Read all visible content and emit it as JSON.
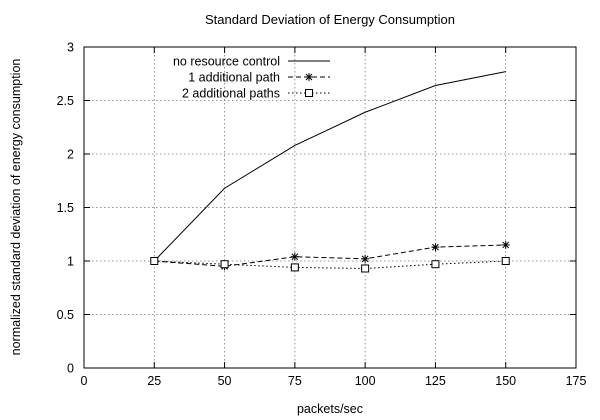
{
  "chart_data": {
    "type": "line",
    "title": "Standard Deviation of Energy Consumption",
    "xlabel": "packets/sec",
    "ylabel": "normalized standard deviation of energy consumption",
    "xlim": [
      0,
      175
    ],
    "ylim": [
      0,
      3
    ],
    "xticks": [
      "0",
      "25",
      "50",
      "75",
      "100",
      "125",
      "150",
      "175"
    ],
    "yticks": [
      "0",
      "0.5",
      "1",
      "1.5",
      "2",
      "2.5",
      "3"
    ],
    "grid": true,
    "legend_position": "top-left",
    "series": [
      {
        "name": "no resource control",
        "marker": "none",
        "line": "solid",
        "x": [
          25,
          50,
          75,
          100,
          125,
          150
        ],
        "y": [
          1.0,
          1.68,
          2.08,
          2.39,
          2.64,
          2.77
        ]
      },
      {
        "name": "1 additional path",
        "marker": "star",
        "line": "dashed",
        "x": [
          25,
          50,
          75,
          100,
          125,
          150
        ],
        "y": [
          1.0,
          0.95,
          1.04,
          1.02,
          1.13,
          1.15
        ]
      },
      {
        "name": "2 additional paths",
        "marker": "square",
        "line": "dotted",
        "x": [
          25,
          50,
          75,
          100,
          125,
          150
        ],
        "y": [
          1.0,
          0.97,
          0.94,
          0.93,
          0.97,
          1.0
        ]
      }
    ]
  }
}
